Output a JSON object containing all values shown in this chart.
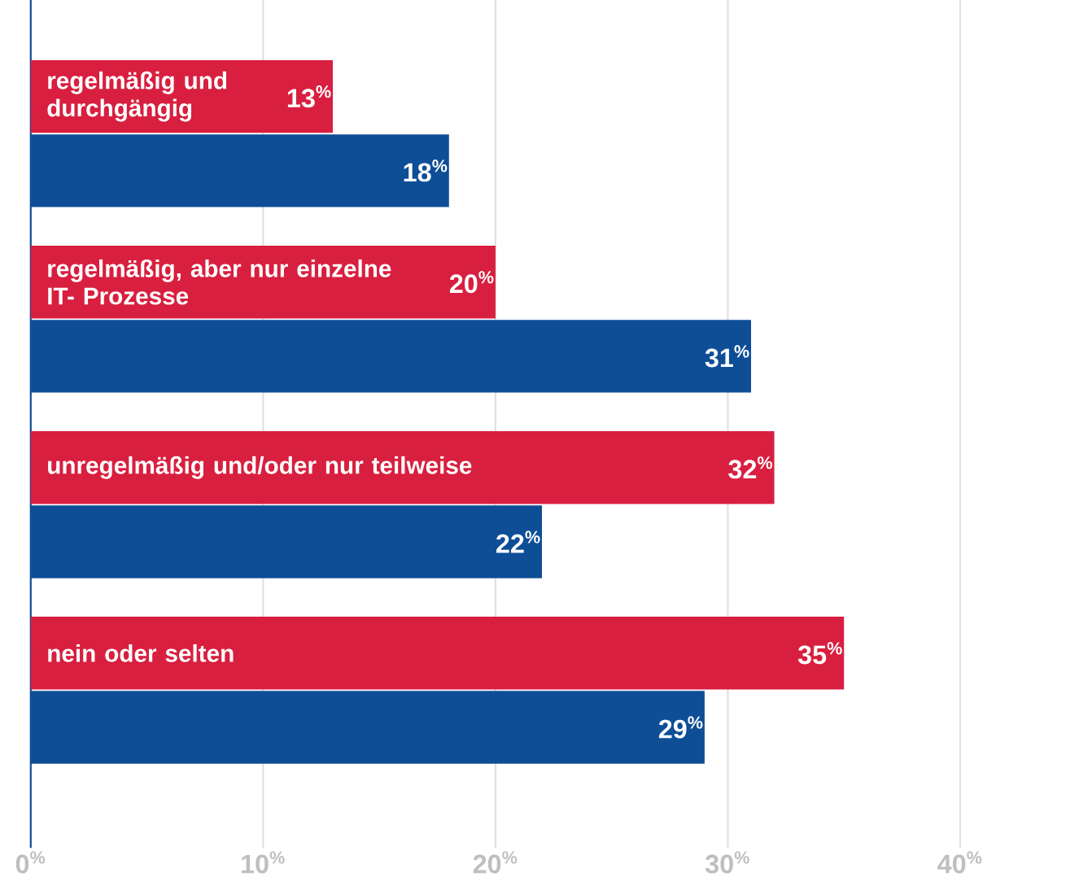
{
  "chart_data": {
    "type": "bar",
    "orientation": "horizontal",
    "categories": [
      "regelmäßig und durchgängig",
      "regelmäßig, aber nur einzelne IT- Prozesse",
      "unregelmäßig und/oder nur teilweise",
      "nein oder selten"
    ],
    "series": [
      {
        "color": "#d81f3f",
        "values": [
          13,
          20,
          32,
          35
        ],
        "value_labels": [
          "13$^{%}$",
          "20$^{%}$",
          "32$^{%}$",
          "35$^{%}$"
        ]
      },
      {
        "color": "#0e4e96",
        "values": [
          18,
          31,
          22,
          29
        ],
        "value_labels": [
          "18$^{%}$",
          "31$^{%}$",
          "22$^{%}$",
          "29$^{%}$"
        ]
      }
    ],
    "xlim": [
      0,
      40
    ],
    "xticks": [
      {
        "value": 0,
        "label": "0$^{%}$"
      },
      {
        "value": 10,
        "label": "10$^{%}$"
      },
      {
        "value": 20,
        "label": "20$^{%}$"
      },
      {
        "value": 30,
        "label": "30$^{%}$"
      },
      {
        "value": 40,
        "label": "40$^{%}$"
      }
    ],
    "grid": "x"
  }
}
